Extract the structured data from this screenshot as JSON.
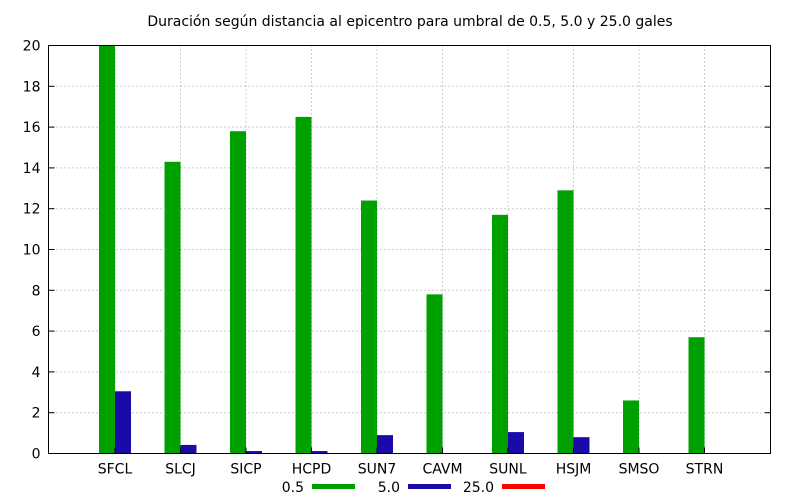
{
  "chart_data": {
    "type": "bar",
    "title": "Duración según distancia al epicentro para umbral de 0.5, 5.0 y 25.0 gales",
    "xlabel": "",
    "ylabel": "",
    "ylim": [
      0,
      20
    ],
    "yticks": [
      0,
      2,
      4,
      6,
      8,
      10,
      12,
      14,
      16,
      18,
      20
    ],
    "categories": [
      "SFCL",
      "SLCJ",
      "SICP",
      "HCPD",
      "SUN7",
      "CAVM",
      "SUNL",
      "HSJM",
      "SMSO",
      "STRN"
    ],
    "series": [
      {
        "name": "0.5",
        "color": "#00a000",
        "values": [
          20,
          14.3,
          15.8,
          16.5,
          12.4,
          7.8,
          11.7,
          12.9,
          2.6,
          5.7
        ]
      },
      {
        "name": "5.0",
        "color": "#1a0aa8",
        "values": [
          3.05,
          0.42,
          0.12,
          0.12,
          0.9,
          0,
          1.05,
          0.8,
          0,
          0
        ]
      },
      {
        "name": "25.0",
        "color": "#ff0000",
        "values": [
          0,
          0,
          0,
          0,
          0,
          0,
          0,
          0,
          0,
          0
        ]
      }
    ],
    "grid": true,
    "legend_position": "bottom-center"
  }
}
